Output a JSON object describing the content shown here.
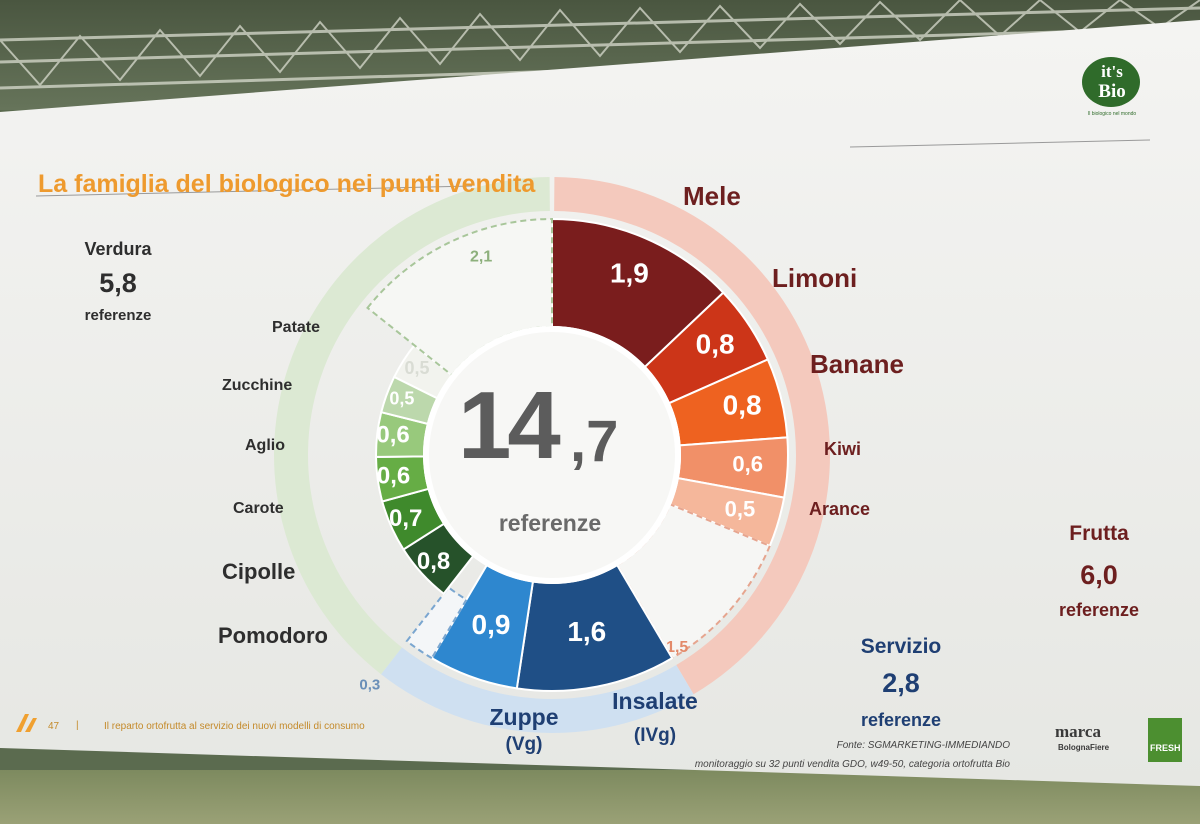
{
  "title": "La famiglia del biologico nei punti vendita",
  "center": {
    "big": "14",
    "small": ",7",
    "label": "referenze"
  },
  "verdura": {
    "name": "Verdura",
    "value": "5,8",
    "unit": "referenze"
  },
  "frutta": {
    "name": "Frutta",
    "value": "6,0",
    "unit": "referenze"
  },
  "servizio": {
    "name": "Servizio",
    "value": "2,8",
    "unit": "referenze"
  },
  "veg_items": [
    {
      "name": "Patate",
      "value": "0,5",
      "color": "#f2f3ee"
    },
    {
      "name": "Zucchine",
      "value": "0,5",
      "color": "#bcd8ac"
    },
    {
      "name": "Aglio",
      "value": "0,6",
      "color": "#98c97c"
    },
    {
      "name": "Carote",
      "value": "0,6",
      "color": "#66ad45"
    },
    {
      "name": "Cipolle",
      "value": "0,7",
      "color": "#3f8a2c"
    },
    {
      "name": "Pomodoro",
      "value": "0,8",
      "color": "#26522a"
    }
  ],
  "veg_other": "2,1",
  "fruit_items": [
    {
      "name": "Mele",
      "value": "1,9",
      "color": "#7a1d1d"
    },
    {
      "name": "Limoni",
      "value": "0,8",
      "color": "#cc3518"
    },
    {
      "name": "Banane",
      "value": "0,8",
      "color": "#ee6220"
    },
    {
      "name": "Kiwi",
      "value": "0,6",
      "color": "#f19068"
    },
    {
      "name": "Arance",
      "value": "0,5",
      "color": "#f5b79b"
    }
  ],
  "fruit_other": "1,5",
  "service_items": [
    {
      "name": "Zuppe (Vg)",
      "line1": "Zuppe",
      "line2": "(Vg)",
      "value": "0,9",
      "color": "#2e87cf"
    },
    {
      "name": "Insalate (IVg)",
      "line1": "Insalate",
      "line2": "(IVg)",
      "value": "1,6",
      "color": "#1f4f86"
    }
  ],
  "service_other": "0,3",
  "footer": {
    "page": "47",
    "sep": "|",
    "text": "Il reparto ortofrutta al servizio dei nuovi modelli di consumo"
  },
  "source": {
    "line1": "Fonte: SGMARKETING-IMMEDIANDO",
    "line2": "monitoraggio su 32 punti vendita GDO, w49-50, categoria ortofrutta Bio"
  },
  "logos": {
    "itsbio_top": "it's",
    "itsbio_bottom": "Bio",
    "itsbio_tagline": "Il biologico nel mondo",
    "marca": "marca",
    "marca_sub": "BolognaFiere",
    "fresh": "FRESH"
  },
  "colors": {
    "accent": "#ee9a2e",
    "verdura_ring": "#dce9d3",
    "frutta_ring": "#f4c9bd",
    "servizio_ring": "#cfe0f1"
  }
}
